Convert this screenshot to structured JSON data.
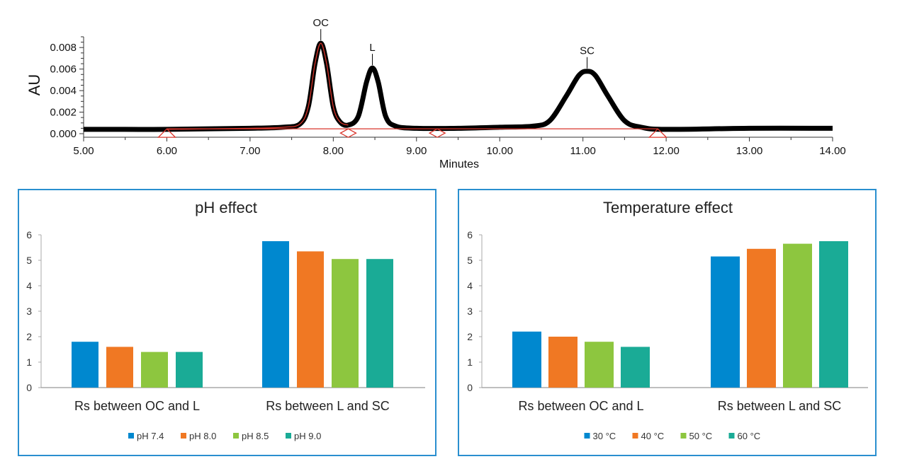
{
  "chart_data": [
    {
      "type": "line",
      "xlabel": "Minutes",
      "ylabel": "AU",
      "xlim": [
        5.0,
        14.0
      ],
      "ylim": [
        0.0,
        0.009
      ],
      "x_ticks": [
        "5.00",
        "6.00",
        "7.00",
        "8.00",
        "9.00",
        "10.00",
        "11.00",
        "12.00",
        "13.00",
        "14.00"
      ],
      "y_ticks": [
        "0.000",
        "0.002",
        "0.004",
        "0.006",
        "0.008"
      ],
      "series_color": "#000000",
      "trace": [
        [
          5.0,
          0.0004
        ],
        [
          5.5,
          0.0004
        ],
        [
          6.0,
          0.0004
        ],
        [
          6.5,
          0.00045
        ],
        [
          7.0,
          0.0005
        ],
        [
          7.4,
          0.0006
        ],
        [
          7.6,
          0.0009
        ],
        [
          7.7,
          0.0025
        ],
        [
          7.78,
          0.0065
        ],
        [
          7.85,
          0.0084
        ],
        [
          7.92,
          0.0065
        ],
        [
          8.0,
          0.0025
        ],
        [
          8.08,
          0.0011
        ],
        [
          8.18,
          0.0008
        ],
        [
          8.3,
          0.0016
        ],
        [
          8.4,
          0.0048
        ],
        [
          8.47,
          0.0061
        ],
        [
          8.54,
          0.0048
        ],
        [
          8.63,
          0.0016
        ],
        [
          8.75,
          0.0007
        ],
        [
          9.0,
          0.0005
        ],
        [
          9.5,
          0.0005
        ],
        [
          10.0,
          0.0006
        ],
        [
          10.4,
          0.0007
        ],
        [
          10.6,
          0.0012
        ],
        [
          10.8,
          0.0035
        ],
        [
          10.95,
          0.0054
        ],
        [
          11.05,
          0.0058
        ],
        [
          11.15,
          0.0054
        ],
        [
          11.3,
          0.0035
        ],
        [
          11.5,
          0.0012
        ],
        [
          11.7,
          0.0006
        ],
        [
          12.0,
          0.0004
        ],
        [
          13.0,
          0.0005
        ],
        [
          14.0,
          0.0005
        ]
      ],
      "peaks": [
        {
          "label": "OC",
          "x": 7.85,
          "y": 0.0084
        },
        {
          "label": "L",
          "x": 8.47,
          "y": 0.0061
        },
        {
          "label": "SC",
          "x": 11.05,
          "y": 0.0058
        }
      ],
      "integration_baseline": {
        "color": "#d9352b",
        "from": [
          6.0,
          0.00045
        ],
        "to": [
          11.9,
          0.00045
        ]
      },
      "markers": [
        {
          "shape": "triangle",
          "x": 6.0
        },
        {
          "shape": "diamond",
          "x": 8.18
        },
        {
          "shape": "diamond",
          "x": 9.25
        },
        {
          "shape": "triangle",
          "x": 11.9
        }
      ]
    },
    {
      "type": "bar",
      "title": "pH effect",
      "categories": [
        "Rs between OC and  L",
        "Rs between L and SC"
      ],
      "ylim": [
        0,
        6
      ],
      "y_ticks": [
        "0",
        "1",
        "2",
        "3",
        "4",
        "5",
        "6"
      ],
      "legend_position": "bottom",
      "series": [
        {
          "name": "pH 7.4",
          "color": "#0088cf",
          "values": [
            1.8,
            5.75
          ]
        },
        {
          "name": "pH 8.0",
          "color": "#f07823",
          "values": [
            1.6,
            5.35
          ]
        },
        {
          "name": "pH 8.5",
          "color": "#8dc63f",
          "values": [
            1.4,
            5.05
          ]
        },
        {
          "name": "pH 9.0",
          "color": "#1aab96",
          "values": [
            1.4,
            5.05
          ]
        }
      ]
    },
    {
      "type": "bar",
      "title": "Temperature effect",
      "categories": [
        "Rs between OC and L",
        "Rs between L and SC"
      ],
      "ylim": [
        0,
        6
      ],
      "y_ticks": [
        "0",
        "1",
        "2",
        "3",
        "4",
        "5",
        "6"
      ],
      "legend_position": "bottom",
      "series": [
        {
          "name": "30 °C",
          "color": "#0088cf",
          "values": [
            2.2,
            5.15
          ]
        },
        {
          "name": "40 °C",
          "color": "#f07823",
          "values": [
            2.0,
            5.45
          ]
        },
        {
          "name": "50 °C",
          "color": "#8dc63f",
          "values": [
            1.8,
            5.65
          ]
        },
        {
          "name": "60 °C",
          "color": "#1aab96",
          "values": [
            1.6,
            5.75
          ]
        }
      ]
    }
  ],
  "panel_border_color": "#2a8fcf"
}
